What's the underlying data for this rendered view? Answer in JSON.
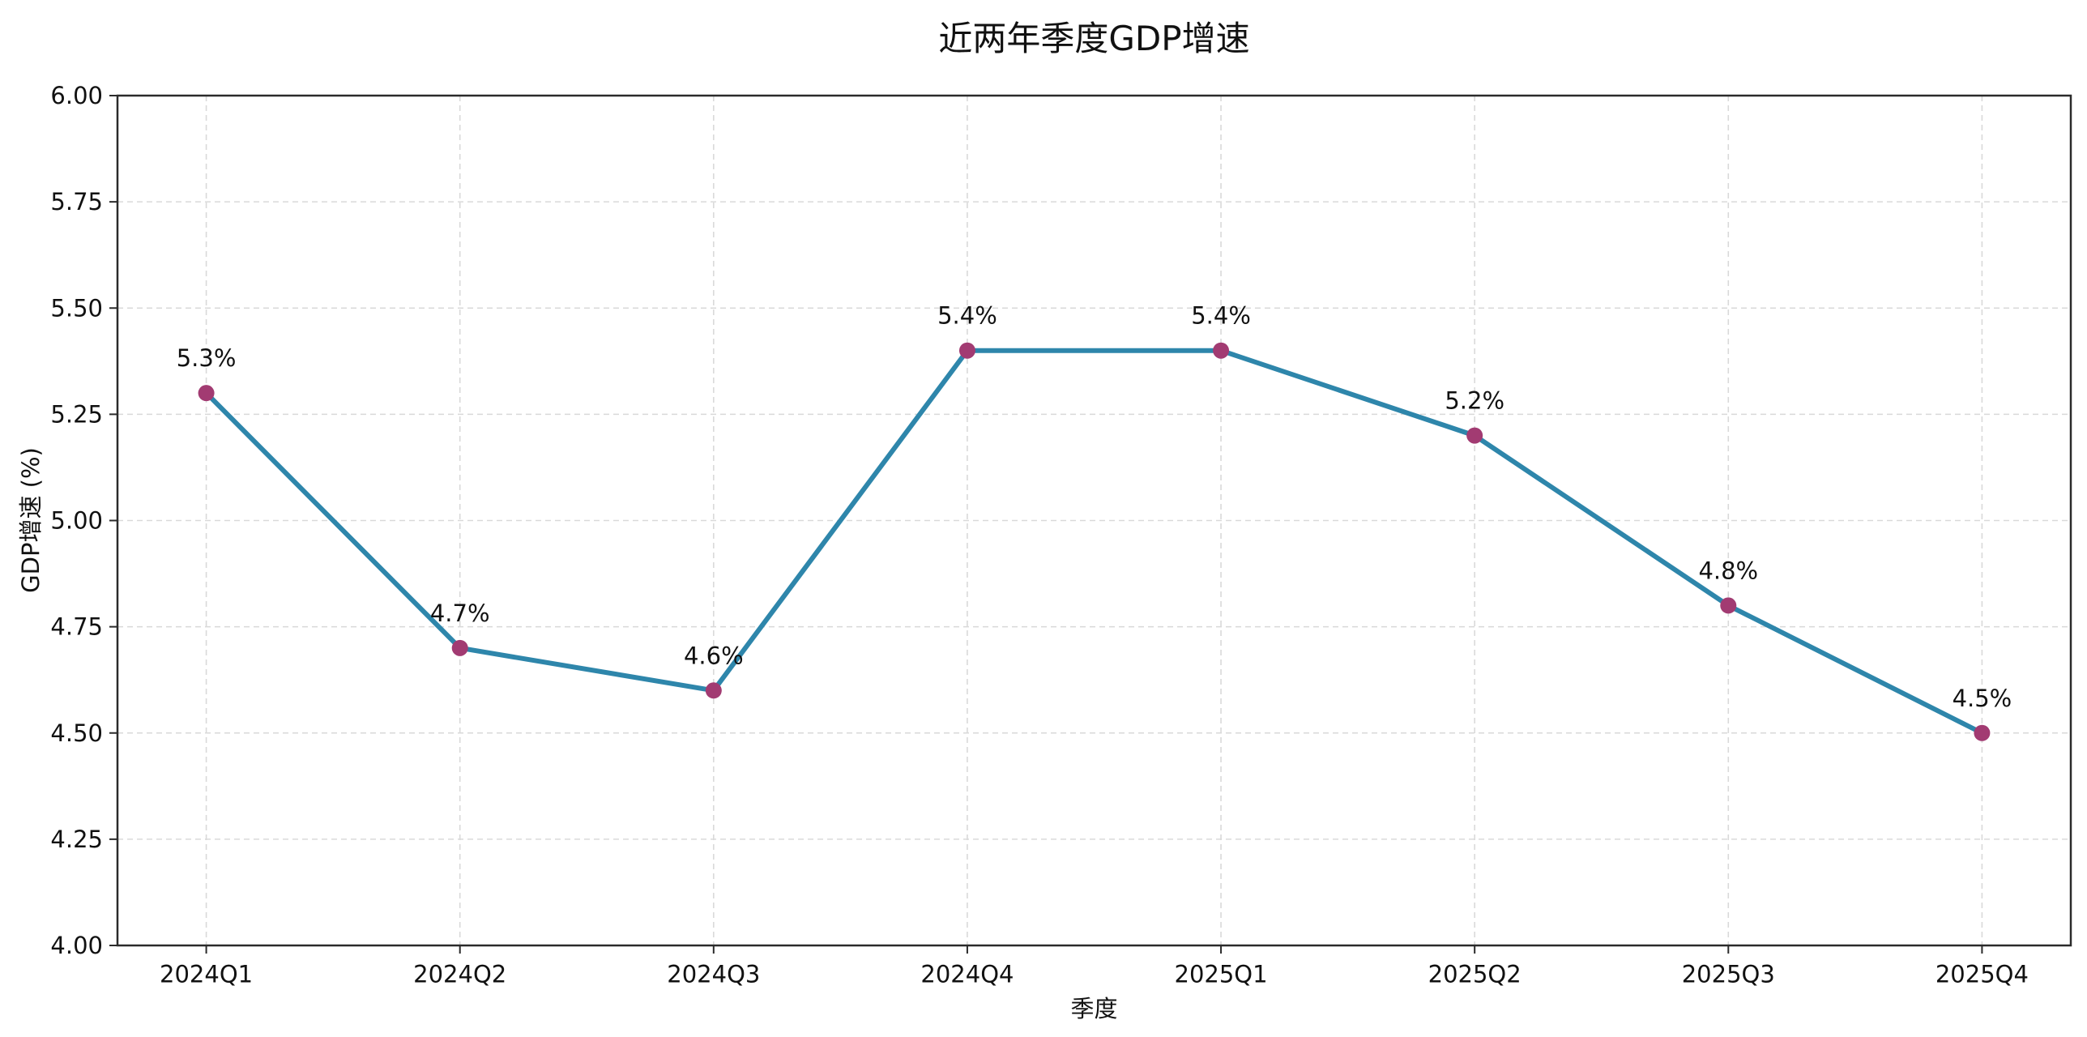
{
  "title": "近两年季度GDP增速",
  "chart_data": {
    "type": "line",
    "title": "近两年季度GDP增速",
    "xlabel": "季度",
    "ylabel": "GDP增速 (%)",
    "categories": [
      "2024Q1",
      "2024Q2",
      "2024Q3",
      "2024Q4",
      "2025Q1",
      "2025Q2",
      "2025Q3",
      "2025Q4"
    ],
    "values": [
      5.3,
      4.7,
      4.6,
      5.4,
      5.4,
      5.2,
      4.8,
      4.5
    ],
    "data_labels": [
      "5.3%",
      "4.7%",
      "4.6%",
      "5.4%",
      "5.4%",
      "5.2%",
      "4.8%",
      "4.5%"
    ],
    "ylim": [
      4.0,
      6.0
    ],
    "ytick_step": 0.25,
    "ytick_labels": [
      "4.00",
      "4.25",
      "4.50",
      "4.75",
      "5.00",
      "5.25",
      "5.50",
      "5.75",
      "6.00"
    ],
    "grid": "dashed",
    "legend": "none",
    "colors": {
      "line": "#2E86AB",
      "marker": "#A23B72",
      "grid": "#d9d9d9",
      "spine": "#2b2b2b",
      "text": "#111111",
      "background": "#ffffff"
    }
  }
}
